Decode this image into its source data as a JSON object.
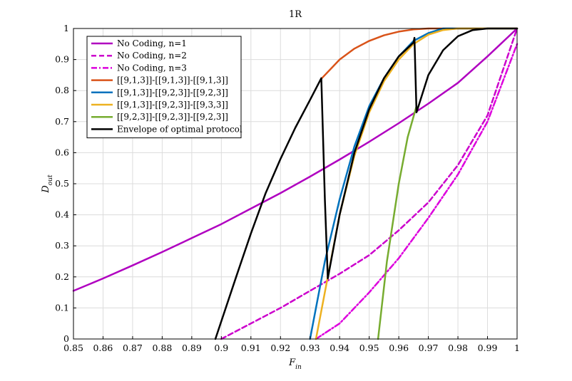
{
  "chart_data": {
    "type": "line",
    "title": "1R",
    "xlabel": "F_in",
    "ylabel": "D_out",
    "xlim": [
      0.85,
      1.0
    ],
    "ylim": [
      0,
      1
    ],
    "grid": true,
    "legend_position": "top-left",
    "x_ticks": [
      "0.85",
      "0.86",
      "0.87",
      "0.88",
      "0.89",
      "0.9",
      "0.91",
      "0.92",
      "0.93",
      "0.94",
      "0.95",
      "0.96",
      "0.97",
      "0.98",
      "0.99",
      "1"
    ],
    "y_ticks": [
      "0",
      "0.1",
      "0.2",
      "0.3",
      "0.4",
      "0.5",
      "0.6",
      "0.7",
      "0.8",
      "0.9",
      "1"
    ],
    "series": [
      {
        "name": "No Coding, n=1",
        "color": "#b000c0",
        "style": "solid",
        "x": [
          0.85,
          0.86,
          0.87,
          0.88,
          0.89,
          0.9,
          0.91,
          0.92,
          0.93,
          0.94,
          0.95,
          0.96,
          0.97,
          0.98,
          0.99,
          1.0
        ],
        "y": [
          0.155,
          0.195,
          0.237,
          0.28,
          0.325,
          0.37,
          0.42,
          0.47,
          0.523,
          0.578,
          0.635,
          0.695,
          0.758,
          0.825,
          0.91,
          1.0
        ]
      },
      {
        "name": "No Coding, n=2",
        "color": "#cc00cc",
        "style": "dashed",
        "x": [
          0.9,
          0.91,
          0.92,
          0.93,
          0.94,
          0.95,
          0.96,
          0.97,
          0.98,
          0.99,
          1.0
        ],
        "y": [
          0.0,
          0.05,
          0.1,
          0.155,
          0.21,
          0.27,
          0.35,
          0.44,
          0.56,
          0.72,
          1.0
        ]
      },
      {
        "name": "No Coding, n=3",
        "color": "#dd00dd",
        "style": "dashdot",
        "x": [
          0.932,
          0.94,
          0.95,
          0.96,
          0.97,
          0.98,
          0.99,
          1.0
        ],
        "y": [
          0.0,
          0.05,
          0.15,
          0.26,
          0.39,
          0.53,
          0.7,
          0.95
        ]
      },
      {
        "name": "[[9,1,3]]-[[9,1,3]]-[[9,1,3]]",
        "color": "#d95319",
        "style": "solid",
        "x": [
          0.934,
          0.94,
          0.945,
          0.95,
          0.955,
          0.96,
          0.965,
          0.97,
          0.975,
          1.0
        ],
        "y": [
          0.84,
          0.9,
          0.935,
          0.96,
          0.978,
          0.99,
          0.997,
          1.0,
          1.0,
          1.0
        ]
      },
      {
        "name": "[[9,1,3]]-[[9,2,3]]-[[9,2,3]]",
        "color": "#0072bd",
        "style": "solid",
        "x": [
          0.93,
          0.935,
          0.94,
          0.945,
          0.95,
          0.955,
          0.96,
          0.965,
          0.97,
          0.975,
          1.0
        ],
        "y": [
          0.0,
          0.25,
          0.45,
          0.62,
          0.75,
          0.84,
          0.91,
          0.96,
          0.985,
          1.0,
          1.0
        ]
      },
      {
        "name": "[[9,1,3]]-[[9,2,3]]-[[9,3,3]]",
        "color": "#edb120",
        "style": "solid",
        "x": [
          0.932,
          0.936,
          0.94,
          0.945,
          0.95,
          0.955,
          0.96,
          0.965,
          0.97,
          0.975,
          0.98,
          1.0
        ],
        "y": [
          0.0,
          0.2,
          0.4,
          0.59,
          0.73,
          0.83,
          0.9,
          0.95,
          0.98,
          0.995,
          1.0,
          1.0
        ]
      },
      {
        "name": "[[9,2,3]]-[[9,2,3]]-[[9,2,3]]",
        "color": "#77ac30",
        "style": "solid",
        "x": [
          0.953,
          0.956,
          0.96,
          0.963,
          0.966
        ],
        "y": [
          0.0,
          0.25,
          0.5,
          0.65,
          0.75
        ]
      },
      {
        "name": "Envelope of optimal protocol",
        "color": "#000000",
        "style": "solid",
        "x": [
          0.898,
          0.905,
          0.91,
          0.915,
          0.92,
          0.925,
          0.93,
          0.9338,
          0.935,
          0.936,
          0.94,
          0.945,
          0.95,
          0.955,
          0.96,
          0.965,
          0.9653,
          0.966,
          0.97,
          0.975,
          0.98,
          0.985,
          0.99,
          1.0
        ],
        "y": [
          0.0,
          0.2,
          0.34,
          0.47,
          0.58,
          0.68,
          0.77,
          0.84,
          0.45,
          0.195,
          0.4,
          0.6,
          0.74,
          0.84,
          0.91,
          0.955,
          0.97,
          0.73,
          0.85,
          0.93,
          0.975,
          0.995,
          1.0,
          1.0
        ]
      }
    ]
  }
}
